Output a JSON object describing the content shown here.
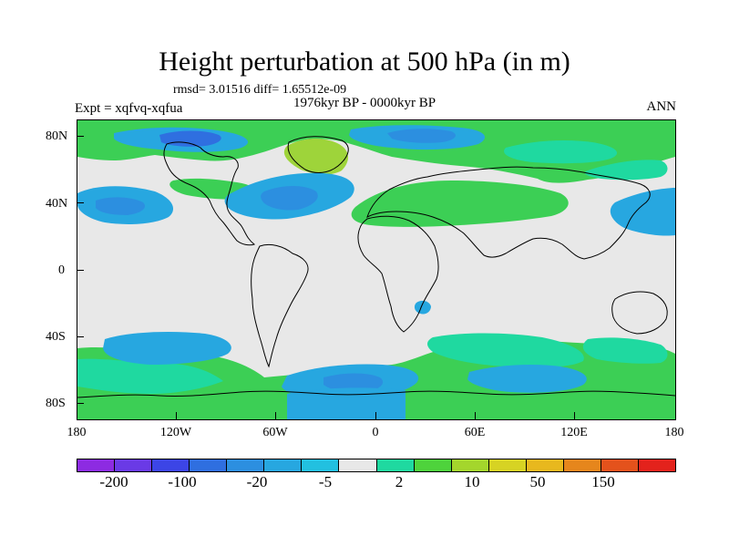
{
  "title": "Height perturbation at 500 hPa (in m)",
  "stats": "rmsd= 3.01516 diff= 1.65512e-09",
  "experiment": "Expt = xqfvq-xqfua",
  "period": "1976kyr BP - 0000kyr BP",
  "season": "ANN",
  "map": {
    "lat_labels": [
      "80N",
      "40N",
      "0",
      "40S",
      "80S"
    ],
    "lon_labels": [
      "180",
      "120W",
      "60W",
      "0",
      "60E",
      "120E",
      "180"
    ],
    "background_color": "#e8e8e8",
    "coastline_color": "#000000"
  },
  "colorbar": {
    "colors": [
      "#8d2be2",
      "#6a3ae6",
      "#3c45e6",
      "#2f6fe0",
      "#2c8fe0",
      "#27a7e0",
      "#22c0e0",
      "#e8e8e8",
      "#1fd9a0",
      "#4ed33c",
      "#a4d62c",
      "#d7d323",
      "#e8b81e",
      "#e6861c",
      "#e4521c",
      "#e3221c"
    ],
    "labels": [
      "-200",
      "-100",
      "-20",
      "-5",
      "2",
      "10",
      "50",
      "150"
    ]
  }
}
